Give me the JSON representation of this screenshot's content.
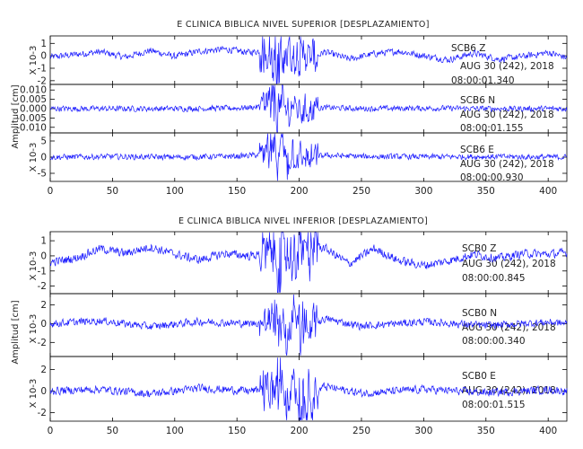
{
  "panels": [
    {
      "title": "E CLINICA BIBLICA NIVEL SUPERIOR [DESPLAZAMIENTO]",
      "ylabel": "Amplitud [cm]",
      "traces": [
        {
          "label_line1": "SCB6  Z",
          "label_line2": "AUG 30 (242), 2018",
          "label_line3": "08:00:01.340",
          "scale_label": "X 10-3",
          "ticks": [
            "1",
            "0",
            "-1",
            "-2"
          ],
          "tick_values": [
            1,
            0,
            -1,
            -2
          ],
          "ylim": [
            -2.3,
            1.6
          ]
        },
        {
          "label_line1": "SCB6  N",
          "label_line2": "AUG 30 (242), 2018",
          "label_line3": "08:00:01.155",
          "scale_label": "",
          "ticks": [
            "0.010",
            "0.005",
            "0.000",
            "-0.005",
            "-0.010"
          ],
          "tick_values": [
            0.01,
            0.005,
            0.0,
            -0.005,
            -0.01
          ],
          "ylim": [
            -0.013,
            0.013
          ]
        },
        {
          "label_line1": "SCB6  E",
          "label_line2": "AUG 30 (242), 2018",
          "label_line3": "08:00:00.930",
          "scale_label": "X 10-3",
          "ticks": [
            "5",
            "0",
            "-5"
          ],
          "tick_values": [
            5,
            0,
            -5
          ],
          "ylim": [
            -7.5,
            7.5
          ]
        }
      ],
      "x_ticks": [
        "0",
        "50",
        "100",
        "150",
        "200",
        "250",
        "300",
        "350",
        "400"
      ]
    },
    {
      "title": "E CLINICA BIBLICA NIVEL INFERIOR [DESPLAZAMIENTO]",
      "ylabel": "Amplitud [cm]",
      "traces": [
        {
          "label_line1": "SCB0  Z",
          "label_line2": "AUG 30 (242), 2018",
          "label_line3": "08:00:00.845",
          "scale_label": "X 10-3",
          "ticks": [
            "1",
            "0",
            "-1",
            "-2"
          ],
          "tick_values": [
            1,
            0,
            -1,
            -2
          ],
          "ylim": [
            -2.5,
            1.6
          ]
        },
        {
          "label_line1": "SCB0  N",
          "label_line2": "AUG 30 (242), 2018",
          "label_line3": "08:00:00.340",
          "scale_label": "X 10-3",
          "ticks": [
            "2",
            "0",
            "-2"
          ],
          "tick_values": [
            2,
            0,
            -2
          ],
          "ylim": [
            -3.5,
            3.2
          ]
        },
        {
          "label_line1": "SCB0  E",
          "label_line2": "AUG 30 (242), 2018",
          "label_line3": "08:00:01.515",
          "scale_label": "X 10-3",
          "ticks": [
            "2",
            "0",
            "-2"
          ],
          "tick_values": [
            2,
            0,
            -2
          ],
          "ylim": [
            -2.8,
            3.2
          ]
        }
      ],
      "x_ticks": [
        "0",
        "50",
        "100",
        "150",
        "200",
        "250",
        "300",
        "350",
        "400"
      ]
    }
  ],
  "chart_data": {
    "type": "line",
    "xlim": [
      0,
      415
    ],
    "x_ticks": [
      0,
      50,
      100,
      150,
      200,
      250,
      300,
      350,
      400
    ],
    "line_color": "#1a1aff",
    "frame_color": "#000000",
    "series": [
      {
        "name": "SCB6  Z",
        "x": [
          0,
          20,
          40,
          60,
          80,
          100,
          120,
          140,
          160,
          170,
          175,
          180,
          185,
          190,
          195,
          200,
          210,
          220,
          240,
          260,
          280,
          300,
          320,
          340,
          360,
          380,
          400,
          415
        ],
        "y": [
          -0.2,
          0.2,
          0.6,
          -0.2,
          0.8,
          -0.1,
          0.7,
          1.0,
          0.5,
          0.8,
          1.3,
          -1.7,
          -2.1,
          1.4,
          -0.9,
          1.0,
          -0.6,
          0.6,
          -0.5,
          0.3,
          0.7,
          0.0,
          -0.6,
          0.4,
          -0.5,
          -0.1,
          0.5,
          -0.3
        ]
      },
      {
        "name": "SCB6  N",
        "x": [
          0,
          50,
          100,
          150,
          170,
          175,
          180,
          183,
          186,
          190,
          195,
          200,
          220,
          250,
          300,
          350,
          415
        ],
        "y": [
          0.0,
          0.0,
          0.0,
          0.0005,
          0.002,
          0.004,
          0.009,
          -0.01,
          0.008,
          -0.006,
          0.004,
          -0.002,
          0.001,
          0.0,
          0.0005,
          0.0,
          0.0
        ]
      },
      {
        "name": "SCB6  E",
        "x": [
          0,
          50,
          100,
          150,
          170,
          175,
          180,
          183,
          186,
          190,
          195,
          200,
          220,
          250,
          300,
          350,
          415
        ],
        "y": [
          0.0,
          0.3,
          0.0,
          0.5,
          1.5,
          3.0,
          6.0,
          -6.5,
          5.5,
          -4.0,
          3.0,
          -2.0,
          1.0,
          0.4,
          0.2,
          0.3,
          0.0
        ]
      },
      {
        "name": "SCB0  Z",
        "x": [
          0,
          20,
          40,
          60,
          80,
          100,
          120,
          140,
          160,
          180,
          185,
          190,
          195,
          200,
          220,
          240,
          260,
          280,
          300,
          320,
          340,
          360,
          380,
          400,
          415
        ],
        "y": [
          -0.8,
          -0.3,
          0.9,
          0.3,
          1.1,
          0.2,
          -0.5,
          0.3,
          0.0,
          0.4,
          -2.3,
          1.3,
          -1.6,
          1.2,
          1.0,
          -1.0,
          0.9,
          -0.6,
          -1.2,
          -0.6,
          0.2,
          -0.3,
          0.3,
          0.2,
          0.4
        ]
      },
      {
        "name": "SCB0  N",
        "x": [
          0,
          40,
          80,
          120,
          160,
          180,
          185,
          190,
          195,
          200,
          220,
          250,
          300,
          350,
          400,
          415
        ],
        "y": [
          0.0,
          0.6,
          -0.6,
          0.4,
          0.0,
          0.5,
          2.5,
          -3.0,
          2.2,
          -2.0,
          1.0,
          -0.5,
          0.4,
          -0.4,
          0.3,
          0.0
        ]
      },
      {
        "name": "SCB0  E",
        "x": [
          0,
          40,
          80,
          120,
          160,
          180,
          185,
          190,
          195,
          200,
          220,
          250,
          300,
          350,
          400,
          415
        ],
        "y": [
          0.0,
          0.3,
          -0.5,
          0.5,
          0.0,
          0.5,
          2.8,
          -2.4,
          2.5,
          -2.2,
          0.8,
          -0.4,
          0.3,
          -0.3,
          0.2,
          0.0
        ]
      }
    ]
  }
}
